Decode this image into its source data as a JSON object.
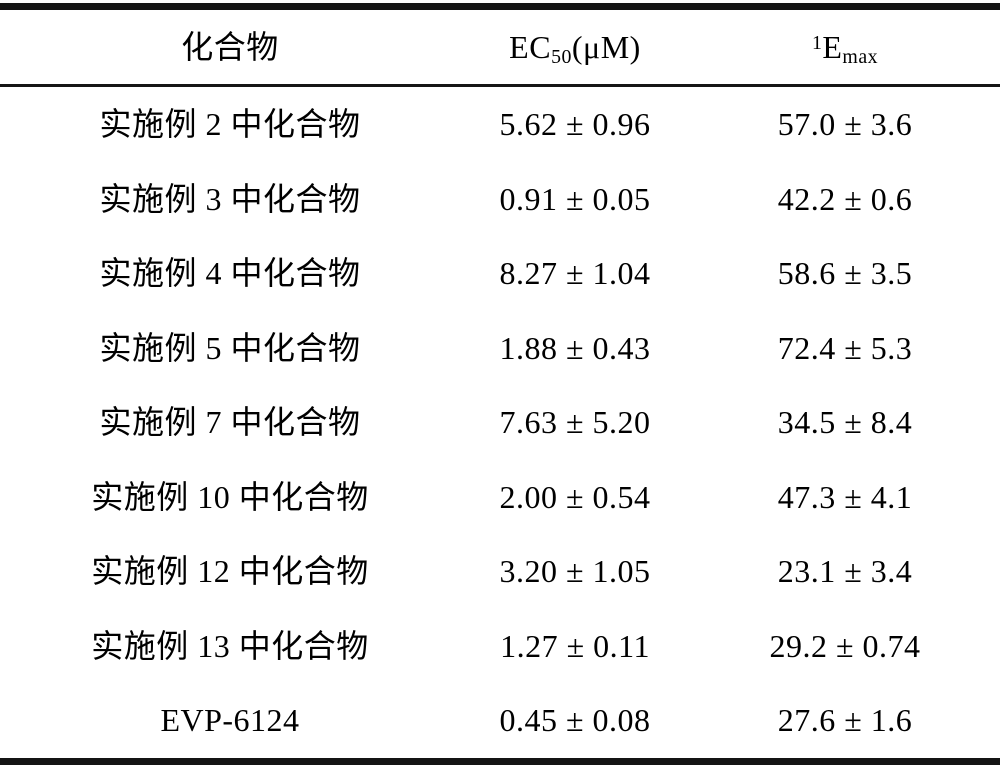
{
  "document": {
    "type": "scanned-patent-table",
    "colors": {
      "background": "#ffffff",
      "text": "#000000",
      "rule": "#141414"
    }
  },
  "table": {
    "header": {
      "compound": "化合物",
      "ec50": {
        "base": "EC",
        "sub": "50",
        "unit": "(μM)"
      },
      "emax": {
        "sup": "1",
        "base": "E",
        "sub": "max"
      }
    },
    "rows": [
      {
        "compound": "实施例 2 中化合物",
        "ec50": "5.62 ± 0.96",
        "emax": "57.0 ± 3.6"
      },
      {
        "compound": "实施例 3 中化合物",
        "ec50": "0.91 ± 0.05",
        "emax": "42.2 ± 0.6"
      },
      {
        "compound": "实施例 4 中化合物",
        "ec50": "8.27 ± 1.04",
        "emax": "58.6 ± 3.5"
      },
      {
        "compound": "实施例 5 中化合物",
        "ec50": "1.88 ± 0.43",
        "emax": "72.4 ± 5.3"
      },
      {
        "compound": "实施例 7 中化合物",
        "ec50": "7.63 ± 5.20",
        "emax": "34.5 ± 8.4"
      },
      {
        "compound": "实施例 10 中化合物",
        "ec50": "2.00 ± 0.54",
        "emax": "47.3 ± 4.1"
      },
      {
        "compound": "实施例 12 中化合物",
        "ec50": "3.20 ± 1.05",
        "emax": "23.1 ± 3.4"
      },
      {
        "compound": "实施例 13 中化合物",
        "ec50": "1.27 ± 0.11",
        "emax": "29.2 ± 0.74"
      },
      {
        "compound": "EVP-6124",
        "ec50": "0.45 ± 0.08",
        "emax": "27.6 ± 1.6"
      }
    ]
  }
}
